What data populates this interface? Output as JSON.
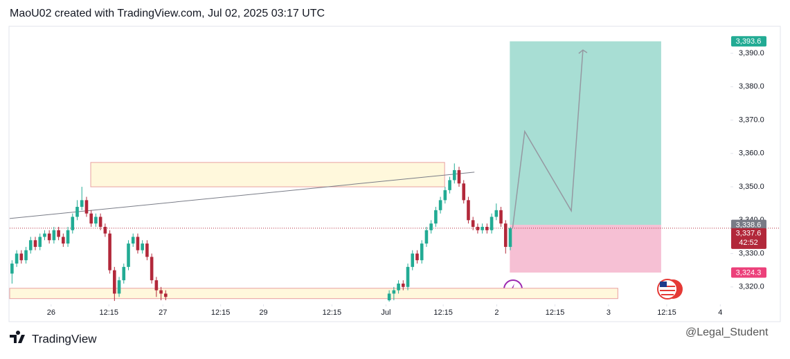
{
  "chart_data": {
    "type": "candlestick",
    "title": "MaoU02 created with TradingView.com, Jul 02, 2025 03:17 UTC",
    "branding": "TradingView",
    "watermark": "@Legal_Student",
    "up_color": "#22ab94",
    "down_color": "#b2283a",
    "grid": false,
    "xlim": [
      -0.5,
      152.5
    ],
    "xticks": [
      {
        "value": 8.4,
        "label": "26"
      },
      {
        "value": 20.8,
        "label": "12:15"
      },
      {
        "value": 32.4,
        "label": "27"
      },
      {
        "value": 44.8,
        "label": "12:15"
      },
      {
        "value": 54.0,
        "label": "29"
      },
      {
        "value": 68.7,
        "label": "12:15"
      },
      {
        "value": 80.3,
        "label": "Jul"
      },
      {
        "value": 92.6,
        "label": "12:15"
      },
      {
        "value": 104.1,
        "label": "2"
      },
      {
        "value": 116.6,
        "label": "12:15"
      },
      {
        "value": 128.1,
        "label": "3"
      },
      {
        "value": 140.6,
        "label": "12:15"
      },
      {
        "value": 152.1,
        "label": "4"
      }
    ],
    "ylim": [
      3315.4,
      3398.1
    ],
    "yticks": [
      {
        "value": 3320,
        "label": "3,320.0"
      },
      {
        "value": 3330,
        "label": "3,330.0"
      },
      {
        "value": 3340,
        "label": "3,340.0"
      },
      {
        "value": 3350,
        "label": "3,350.0"
      },
      {
        "value": 3360,
        "label": "3,360.0"
      },
      {
        "value": 3370,
        "label": "3,370.0"
      },
      {
        "value": 3380,
        "label": "3,380.0"
      },
      {
        "value": 3390,
        "label": "3,390.0"
      }
    ],
    "x": [
      0,
      1,
      2,
      3,
      4,
      5,
      6,
      7,
      8,
      9,
      10,
      11,
      12,
      13,
      14,
      15,
      16,
      17,
      18,
      19,
      20,
      21,
      22,
      23,
      24,
      25,
      26,
      27,
      28,
      29,
      30,
      31,
      32,
      33,
      81,
      82,
      83,
      84,
      85,
      86,
      87,
      88,
      89,
      90,
      91,
      92,
      93,
      94,
      95,
      96,
      97,
      98,
      99,
      100,
      101,
      102,
      103,
      104,
      105,
      106,
      107
    ],
    "open": [
      3324,
      3327,
      3330,
      3328,
      3331,
      3334,
      3332,
      3335,
      3336,
      3334,
      3337,
      3335,
      3333,
      3337,
      3341,
      3344,
      3346,
      3342,
      3339,
      3341,
      3338,
      3336,
      3325,
      3318,
      3322,
      3326,
      3333,
      3335,
      3331,
      3333,
      3329,
      3322,
      3319,
      3318,
      3316,
      3318,
      3319,
      3321,
      3320,
      3326,
      3330,
      3328,
      3333,
      3337,
      3339,
      3343,
      3346,
      3349,
      3352,
      3355,
      3351,
      3346,
      3340,
      3338,
      3337,
      3338,
      3337,
      3341,
      3343,
      3339,
      3332
    ],
    "high": [
      3328,
      3331,
      3331,
      3332,
      3335,
      3335,
      3336,
      3337,
      3337,
      3338,
      3338,
      3336,
      3338,
      3342,
      3346,
      3350,
      3347,
      3343,
      3342,
      3342,
      3339,
      3337,
      3326,
      3323,
      3327,
      3334,
      3336,
      3336,
      3334,
      3334,
      3330,
      3323,
      3320,
      3319,
      3319,
      3320,
      3322,
      3322,
      3327,
      3331,
      3331,
      3334,
      3338,
      3340,
      3344,
      3347,
      3350,
      3353,
      3357,
      3356,
      3352,
      3347,
      3341,
      3339,
      3339,
      3339,
      3342,
      3345,
      3344,
      3340,
      3338
    ],
    "low": [
      3321,
      3326,
      3327,
      3327,
      3330,
      3331,
      3331,
      3334,
      3333,
      3333,
      3334,
      3332,
      3332,
      3336,
      3340,
      3343,
      3341,
      3338,
      3338,
      3337,
      3335,
      3324,
      3315.8,
      3317,
      3321,
      3325,
      3332,
      3330,
      3330,
      3328,
      3321,
      3317,
      3316,
      3316,
      3315.6,
      3316,
      3318,
      3319,
      3319,
      3325,
      3327,
      3327,
      3332,
      3336,
      3338,
      3342,
      3345,
      3348,
      3351,
      3350,
      3345,
      3339,
      3337,
      3336,
      3336,
      3336,
      3336,
      3340,
      3338,
      3330,
      3331
    ],
    "close": [
      3327,
      3330,
      3328,
      3331,
      3334,
      3332,
      3335,
      3336,
      3334,
      3337,
      3335,
      3333,
      3337,
      3341,
      3344,
      3346,
      3342,
      3339,
      3341,
      3338,
      3336,
      3325,
      3318,
      3322,
      3326,
      3333,
      3335,
      3331,
      3333,
      3329,
      3322,
      3319,
      3318,
      3317,
      3318,
      3319,
      3321,
      3320,
      3326,
      3330,
      3328,
      3333,
      3337,
      3339,
      3343,
      3346,
      3349,
      3352,
      3355,
      3351,
      3346,
      3340,
      3338,
      3337,
      3338,
      3337,
      3341,
      3343,
      3339,
      3332,
      3337.6
    ],
    "zones": [
      {
        "x": [
          16.9,
          92.9
        ],
        "y": [
          3350.0,
          3357.3
        ],
        "color": "#fff8dc",
        "border": "#e8a0a0"
      },
      {
        "x": [
          -0.5,
          130.1
        ],
        "y": [
          3316.5,
          3319.6
        ],
        "color": "#fff8dc",
        "border": "#e8a0a0"
      }
    ],
    "trendline": {
      "x": [
        -0.5,
        99.3
      ],
      "y": [
        3340.5,
        3354.4
      ],
      "color": "#787b86"
    },
    "projection": {
      "x": [
        107.5,
        110.1,
        120.1,
        122.6
      ],
      "y": [
        3337.6,
        3366.6,
        3342.8,
        3391.0
      ],
      "color": "#9598a1"
    },
    "position": {
      "x": [
        106.9,
        139.4
      ],
      "target": {
        "value": 3393.6,
        "label": "3,393.6"
      },
      "entry": {
        "value": 3338.6,
        "label": "3,338.6"
      },
      "stop": {
        "value": 3324.3,
        "label": "3,324.3"
      },
      "profit_color": "#a8ded4",
      "loss_color": "#f6c0d4"
    },
    "last_price": {
      "value": 3337.6,
      "label": "3,337.6",
      "countdown": "42:52"
    }
  }
}
